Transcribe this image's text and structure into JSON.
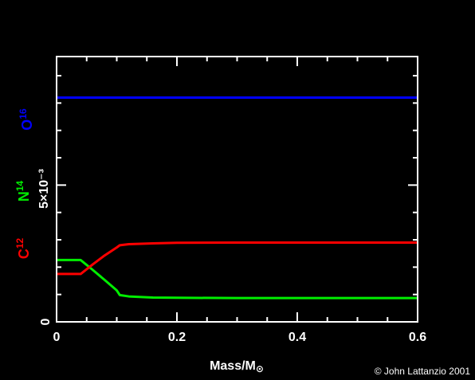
{
  "chart_data": {
    "type": "line",
    "xlabel": "Mass/M",
    "xlabel_sub": "⊙",
    "ylabel_scale": "5×10⁻³",
    "xlim": [
      0,
      0.6
    ],
    "ylim": [
      0,
      0.0097
    ],
    "x_ticks": [
      0,
      0.2,
      0.4,
      0.6
    ],
    "x_tick_labels": [
      "0",
      "0.2",
      "0.4",
      "0.6"
    ],
    "y_ticks": [
      0,
      0.005
    ],
    "y_tick_labels": [
      "0",
      ""
    ],
    "series": [
      {
        "name": "O",
        "name_sup": "16",
        "color": "#0000ff",
        "x": [
          0,
          0.6
        ],
        "y": [
          0.0082,
          0.0082
        ]
      },
      {
        "name": "N",
        "name_sup": "14",
        "color": "#00ee00",
        "x": [
          0,
          0.02,
          0.04,
          0.06,
          0.08,
          0.1,
          0.105,
          0.12,
          0.16,
          0.2,
          0.3,
          0.4,
          0.5,
          0.6
        ],
        "y": [
          0.00226,
          0.00226,
          0.00226,
          0.0019,
          0.00153,
          0.00115,
          0.00098,
          0.00093,
          0.00089,
          0.00088,
          0.00087,
          0.00087,
          0.00087,
          0.00087
        ]
      },
      {
        "name": "C",
        "name_sup": "12",
        "color": "#ff0000",
        "x": [
          0,
          0.02,
          0.04,
          0.06,
          0.08,
          0.1,
          0.105,
          0.12,
          0.16,
          0.2,
          0.3,
          0.4,
          0.5,
          0.6
        ],
        "y": [
          0.00175,
          0.00175,
          0.00175,
          0.0021,
          0.00243,
          0.00272,
          0.0028,
          0.00284,
          0.00287,
          0.00289,
          0.0029,
          0.0029,
          0.0029,
          0.0029
        ]
      }
    ]
  },
  "credit": "© John Lattanzio 2001"
}
